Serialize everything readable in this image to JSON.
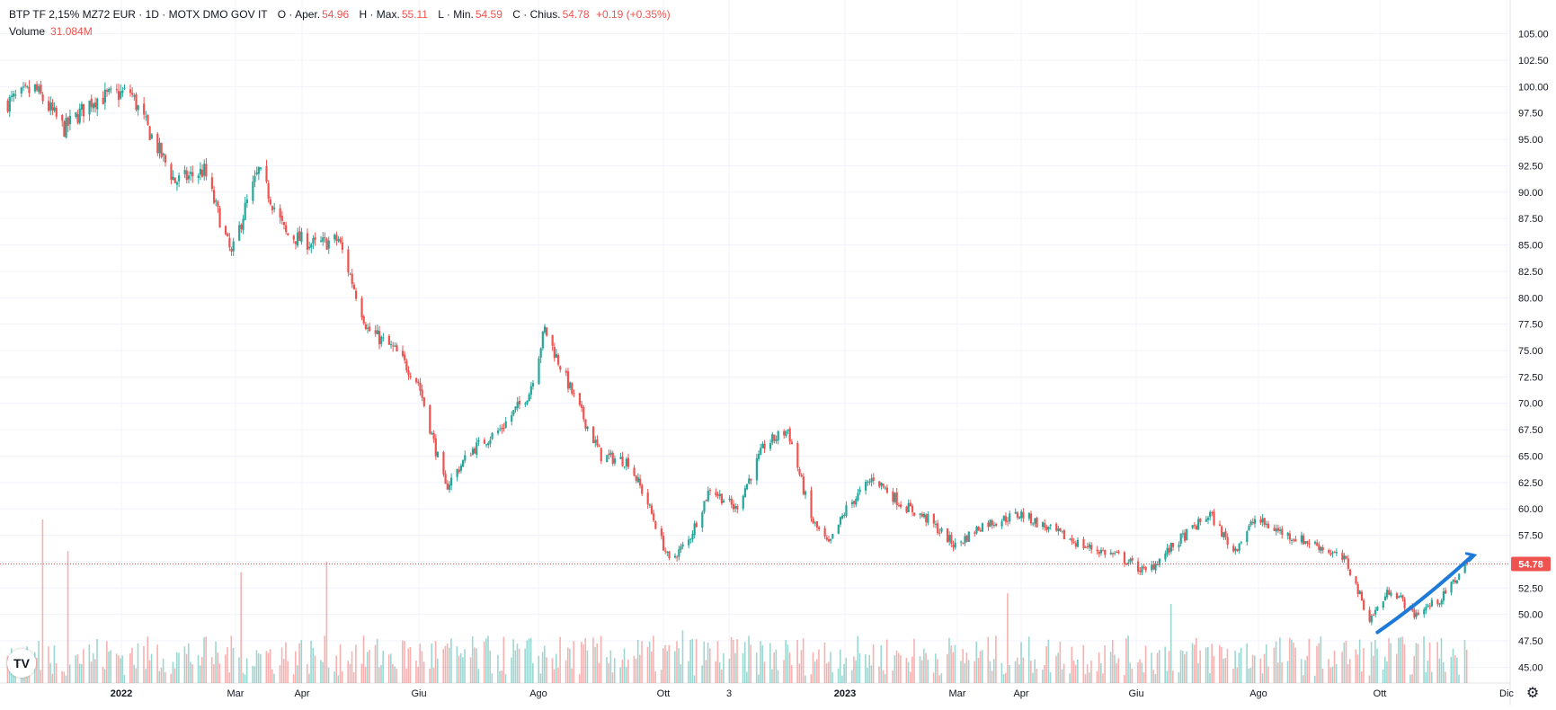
{
  "header": {
    "symbol": "BTP TF 2,15% MZ72 EUR · 1D · MOTX DMO GOV IT",
    "open_label": "O · Aper.",
    "open": "54.96",
    "high_label": "H · Max.",
    "high": "55.11",
    "low_label": "L · Min.",
    "low": "54.59",
    "close_label": "C · Chius.",
    "close": "54.78",
    "change": "+0.19 (+0.35%)",
    "volume_label": "Volume",
    "volume": "31.084M"
  },
  "logo_text": "TV",
  "settings_icon": "gear-icon",
  "colors": {
    "up": "#26a69a",
    "down": "#ef5350",
    "grid": "#f0f3fa",
    "trend": "#1e7ad8",
    "last_price": "#ef5350"
  },
  "chart_data": {
    "type": "candlestick",
    "period": "1D",
    "grid": true,
    "ylim": [
      43.5,
      106.5
    ],
    "y_ticks": [
      "105.00",
      "102.50",
      "100.00",
      "97.50",
      "95.00",
      "92.50",
      "90.00",
      "87.50",
      "85.00",
      "82.50",
      "80.00",
      "77.50",
      "75.00",
      "72.50",
      "70.00",
      "67.50",
      "65.00",
      "62.50",
      "60.00",
      "57.50",
      "55.00",
      "52.50",
      "50.00",
      "47.50",
      "45.00"
    ],
    "x_ticks": [
      {
        "label": "2022",
        "bold": true
      },
      {
        "label": "Mar",
        "bold": false
      },
      {
        "label": "Apr",
        "bold": false
      },
      {
        "label": "Giu",
        "bold": false
      },
      {
        "label": "Ago",
        "bold": false
      },
      {
        "label": "Ott",
        "bold": false
      },
      {
        "label": "3",
        "bold": false
      },
      {
        "label": "2023",
        "bold": true
      },
      {
        "label": "Mar",
        "bold": false
      },
      {
        "label": "Apr",
        "bold": false
      },
      {
        "label": "Giu",
        "bold": false
      },
      {
        "label": "Ago",
        "bold": false
      },
      {
        "label": "Ott",
        "bold": false
      },
      {
        "label": "Dic",
        "bold": false
      }
    ],
    "last_price": 54.78,
    "last_price_label": "54.78",
    "price_path": [
      {
        "date": "2021-11-01",
        "close": 98.5
      },
      {
        "date": "2021-11-15",
        "close": 99.8
      },
      {
        "date": "2021-11-30",
        "close": 96.0
      },
      {
        "date": "2021-12-15",
        "close": 98.8
      },
      {
        "date": "2022-01-03",
        "close": 99.5
      },
      {
        "date": "2022-01-12",
        "close": 96.0
      },
      {
        "date": "2022-01-26",
        "close": 91.0
      },
      {
        "date": "2022-02-10",
        "close": 92.0
      },
      {
        "date": "2022-02-24",
        "close": 84.0
      },
      {
        "date": "2022-03-03",
        "close": 88.5
      },
      {
        "date": "2022-03-10",
        "close": 92.0
      },
      {
        "date": "2022-03-24",
        "close": 86.0
      },
      {
        "date": "2022-04-08",
        "close": 85.0
      },
      {
        "date": "2022-04-20",
        "close": 85.5
      },
      {
        "date": "2022-05-05",
        "close": 77.0
      },
      {
        "date": "2022-05-19",
        "close": 75.0
      },
      {
        "date": "2022-05-31",
        "close": 72.0
      },
      {
        "date": "2022-06-14",
        "close": 62.0
      },
      {
        "date": "2022-06-27",
        "close": 65.5
      },
      {
        "date": "2022-07-12",
        "close": 67.5
      },
      {
        "date": "2022-07-27",
        "close": 71.0
      },
      {
        "date": "2022-08-04",
        "close": 77.0
      },
      {
        "date": "2022-08-18",
        "close": 71.0
      },
      {
        "date": "2022-09-02",
        "close": 65.0
      },
      {
        "date": "2022-09-16",
        "close": 64.5
      },
      {
        "date": "2022-09-26",
        "close": 60.5
      },
      {
        "date": "2022-10-07",
        "close": 55.0
      },
      {
        "date": "2022-10-17",
        "close": 57.0
      },
      {
        "date": "2022-10-28",
        "close": 62.0
      },
      {
        "date": "2022-11-10",
        "close": 60.0
      },
      {
        "date": "2022-11-25",
        "close": 66.0
      },
      {
        "date": "2022-12-07",
        "close": 67.5
      },
      {
        "date": "2022-12-19",
        "close": 59.0
      },
      {
        "date": "2022-12-28",
        "close": 56.5
      },
      {
        "date": "2023-01-06",
        "close": 60.0
      },
      {
        "date": "2023-01-20",
        "close": 63.0
      },
      {
        "date": "2023-02-03",
        "close": 60.5
      },
      {
        "date": "2023-02-17",
        "close": 59.0
      },
      {
        "date": "2023-03-03",
        "close": 56.5
      },
      {
        "date": "2023-03-17",
        "close": 58.5
      },
      {
        "date": "2023-04-06",
        "close": 59.5
      },
      {
        "date": "2023-04-21",
        "close": 58.0
      },
      {
        "date": "2023-05-08",
        "close": 56.5
      },
      {
        "date": "2023-05-26",
        "close": 55.5
      },
      {
        "date": "2023-06-09",
        "close": 54.0
      },
      {
        "date": "2023-06-26",
        "close": 57.0
      },
      {
        "date": "2023-07-12",
        "close": 59.5
      },
      {
        "date": "2023-07-24",
        "close": 56.0
      },
      {
        "date": "2023-08-04",
        "close": 59.0
      },
      {
        "date": "2023-08-21",
        "close": 57.5
      },
      {
        "date": "2023-09-06",
        "close": 56.5
      },
      {
        "date": "2023-09-20",
        "close": 55.0
      },
      {
        "date": "2023-10-02",
        "close": 49.5
      },
      {
        "date": "2023-10-13",
        "close": 52.5
      },
      {
        "date": "2023-10-25",
        "close": 50.0
      },
      {
        "date": "2023-11-08",
        "close": 51.5
      },
      {
        "date": "2023-11-21",
        "close": 54.8
      }
    ],
    "volume_spikes": [
      {
        "date": "2021-11-19",
        "value": 59.0
      },
      {
        "date": "2021-12-02",
        "value": 56.0
      },
      {
        "date": "2022-03-01",
        "value": 54.0
      },
      {
        "date": "2022-04-14",
        "value": 55.0
      },
      {
        "date": "2022-10-14",
        "value": 48.5
      },
      {
        "date": "2023-03-30",
        "value": 52.0
      },
      {
        "date": "2023-06-22",
        "value": 51.0
      }
    ],
    "trend_line": [
      {
        "date": "2023-10-06",
        "value": 48.3
      },
      {
        "date": "2023-11-24",
        "value": 55.6
      }
    ]
  }
}
